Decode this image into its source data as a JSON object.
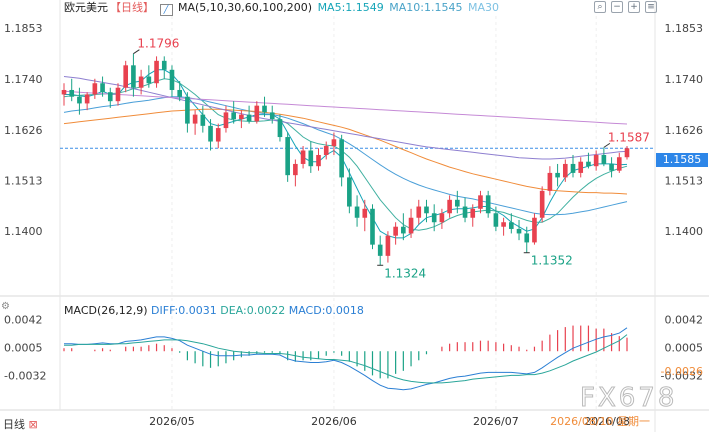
{
  "header": {
    "symbol": "欧元美元",
    "period": "【日线】",
    "ma_label": "MA(5,10,30,60,100,200)",
    "ma5": "MA5:1.1549",
    "ma10": "MA10:1.1545",
    "ma30": "MA30"
  },
  "macd_header": {
    "name": "MACD(26,12,9)",
    "diff": "DIFF:0.0031",
    "dea": "DEA:0.0022",
    "macd": "MACD:0.0018"
  },
  "footer": {
    "period_btn": "日线",
    "dates": [
      "2026/05",
      "2026/06",
      "2026/07",
      "2026/08"
    ],
    "crosshair_date": "2026/08/10 星期一"
  },
  "watermark": "FX678",
  "current_price": "1.1585",
  "icons": [
    "search-icon",
    "zoom-out-icon",
    "zoom-in-icon",
    "settings-icon"
  ],
  "colors": {
    "up": "#e8414f",
    "down": "#1aa286",
    "ma5": "#16a5b8",
    "ma10": "#4aa3c8",
    "ma30": "#7ec2e3",
    "ma60": "#c58ad6",
    "ma100": "#9b8fd6",
    "ma200": "#f08c3a",
    "diff": "#2b7fd4",
    "dea": "#2aa69a",
    "price_line": "#3a8ee6"
  },
  "chart_data": {
    "type": "candlestick",
    "price_axis": [
      "1.1853",
      "1.1740",
      "1.1626",
      "1.1513",
      "1.1400"
    ],
    "ylim": [
      1.128,
      1.188
    ],
    "annotations": [
      {
        "label": "1.1796",
        "value": 1.1796,
        "kind": "high"
      },
      {
        "label": "1.1324",
        "value": 1.1324,
        "kind": "low"
      },
      {
        "label": "1.1352",
        "value": 1.1352,
        "kind": "low"
      },
      {
        "label": "1.1587",
        "value": 1.1587,
        "kind": "high"
      }
    ],
    "candles": [
      [
        1.1705,
        1.173,
        1.168,
        1.1715
      ],
      [
        1.1715,
        1.174,
        1.169,
        1.17
      ],
      [
        1.17,
        1.172,
        1.166,
        1.1685
      ],
      [
        1.1685,
        1.171,
        1.167,
        1.1705
      ],
      [
        1.1705,
        1.174,
        1.1695,
        1.173
      ],
      [
        1.173,
        1.1745,
        1.17,
        1.171
      ],
      [
        1.171,
        1.172,
        1.1675,
        1.169
      ],
      [
        1.169,
        1.173,
        1.168,
        1.172
      ],
      [
        1.172,
        1.178,
        1.171,
        1.177
      ],
      [
        1.177,
        1.1796,
        1.17,
        1.172
      ],
      [
        1.172,
        1.176,
        1.1705,
        1.1745
      ],
      [
        1.1745,
        1.177,
        1.172,
        1.173
      ],
      [
        1.173,
        1.179,
        1.172,
        1.178
      ],
      [
        1.178,
        1.179,
        1.174,
        1.176
      ],
      [
        1.176,
        1.177,
        1.17,
        1.1715
      ],
      [
        1.1715,
        1.1735,
        1.169,
        1.17
      ],
      [
        1.17,
        1.171,
        1.162,
        1.164
      ],
      [
        1.164,
        1.167,
        1.1615,
        1.166
      ],
      [
        1.166,
        1.168,
        1.162,
        1.1635
      ],
      [
        1.1635,
        1.165,
        1.158,
        1.16
      ],
      [
        1.16,
        1.164,
        1.1585,
        1.163
      ],
      [
        1.163,
        1.168,
        1.162,
        1.1665
      ],
      [
        1.1665,
        1.169,
        1.164,
        1.165
      ],
      [
        1.165,
        1.167,
        1.163,
        1.166
      ],
      [
        1.166,
        1.168,
        1.164,
        1.1645
      ],
      [
        1.1645,
        1.169,
        1.164,
        1.168
      ],
      [
        1.168,
        1.17,
        1.1655,
        1.1665
      ],
      [
        1.1665,
        1.168,
        1.164,
        1.165
      ],
      [
        1.165,
        1.166,
        1.16,
        1.161
      ],
      [
        1.161,
        1.162,
        1.151,
        1.1525
      ],
      [
        1.1525,
        1.156,
        1.15,
        1.155
      ],
      [
        1.155,
        1.159,
        1.154,
        1.158
      ],
      [
        1.158,
        1.16,
        1.153,
        1.1545
      ],
      [
        1.1545,
        1.1585,
        1.1535,
        1.157
      ],
      [
        1.157,
        1.16,
        1.156,
        1.159
      ],
      [
        1.159,
        1.162,
        1.157,
        1.1605
      ],
      [
        1.1605,
        1.1615,
        1.15,
        1.152
      ],
      [
        1.152,
        1.154,
        1.144,
        1.1455
      ],
      [
        1.1455,
        1.148,
        1.141,
        1.143
      ],
      [
        1.143,
        1.147,
        1.14,
        1.145
      ],
      [
        1.145,
        1.146,
        1.136,
        1.137
      ],
      [
        1.137,
        1.139,
        1.1324,
        1.1345
      ],
      [
        1.1345,
        1.14,
        1.133,
        1.139
      ],
      [
        1.139,
        1.142,
        1.137,
        1.141
      ],
      [
        1.141,
        1.144,
        1.138,
        1.1395
      ],
      [
        1.1395,
        1.145,
        1.1385,
        1.143
      ],
      [
        1.143,
        1.147,
        1.1415,
        1.1455
      ],
      [
        1.1455,
        1.147,
        1.142,
        1.144
      ],
      [
        1.144,
        1.146,
        1.14,
        1.142
      ],
      [
        1.142,
        1.145,
        1.1405,
        1.144
      ],
      [
        1.144,
        1.148,
        1.143,
        1.147
      ],
      [
        1.147,
        1.149,
        1.144,
        1.1455
      ],
      [
        1.1455,
        1.1475,
        1.142,
        1.143
      ],
      [
        1.143,
        1.146,
        1.141,
        1.145
      ],
      [
        1.145,
        1.149,
        1.144,
        1.148
      ],
      [
        1.148,
        1.149,
        1.143,
        1.144
      ],
      [
        1.144,
        1.1455,
        1.14,
        1.141
      ],
      [
        1.141,
        1.143,
        1.139,
        1.142
      ],
      [
        1.142,
        1.144,
        1.1395,
        1.1405
      ],
      [
        1.1405,
        1.1425,
        1.138,
        1.1395
      ],
      [
        1.1395,
        1.141,
        1.1352,
        1.1375
      ],
      [
        1.1375,
        1.144,
        1.137,
        1.143
      ],
      [
        1.143,
        1.15,
        1.142,
        1.149
      ],
      [
        1.149,
        1.1545,
        1.148,
        1.153
      ],
      [
        1.153,
        1.155,
        1.15,
        1.152
      ],
      [
        1.152,
        1.156,
        1.151,
        1.155
      ],
      [
        1.155,
        1.157,
        1.152,
        1.153
      ],
      [
        1.153,
        1.1565,
        1.152,
        1.1555
      ],
      [
        1.1555,
        1.1575,
        1.154,
        1.1545
      ],
      [
        1.1545,
        1.158,
        1.1535,
        1.157
      ],
      [
        1.157,
        1.1587,
        1.1545,
        1.155
      ],
      [
        1.155,
        1.1565,
        1.152,
        1.1535
      ],
      [
        1.1535,
        1.1575,
        1.153,
        1.1565
      ],
      [
        1.1565,
        1.159,
        1.156,
        1.1585
      ]
    ],
    "ma_series": {
      "MA5": [
        1.1705,
        1.1705,
        1.1702,
        1.17,
        1.1705,
        1.1712,
        1.1705,
        1.1705,
        1.1725,
        1.1732,
        1.1735,
        1.175,
        1.176,
        1.176,
        1.175,
        1.173,
        1.17,
        1.168,
        1.166,
        1.164,
        1.1635,
        1.164,
        1.1645,
        1.165,
        1.1655,
        1.166,
        1.166,
        1.166,
        1.165,
        1.162,
        1.159,
        1.1565,
        1.1555,
        1.1555,
        1.157,
        1.158,
        1.1565,
        1.153,
        1.1495,
        1.146,
        1.143,
        1.14,
        1.139,
        1.1385,
        1.1385,
        1.1395,
        1.1415,
        1.143,
        1.1435,
        1.144,
        1.1448,
        1.145,
        1.145,
        1.1452,
        1.1455,
        1.1455,
        1.1445,
        1.1435,
        1.142,
        1.141,
        1.14,
        1.1405,
        1.143,
        1.1465,
        1.1495,
        1.152,
        1.1535,
        1.154,
        1.1545,
        1.155,
        1.155,
        1.155,
        1.1548,
        1.1549
      ],
      "MA10": [
        1.17,
        1.1702,
        1.1703,
        1.1704,
        1.1705,
        1.1706,
        1.1707,
        1.1708,
        1.1712,
        1.1718,
        1.1722,
        1.1728,
        1.1735,
        1.174,
        1.1738,
        1.173,
        1.1718,
        1.1705,
        1.169,
        1.1675,
        1.166,
        1.1652,
        1.1648,
        1.1646,
        1.1645,
        1.1645,
        1.1646,
        1.1648,
        1.1648,
        1.164,
        1.1625,
        1.161,
        1.16,
        1.1595,
        1.1592,
        1.159,
        1.158,
        1.1565,
        1.1545,
        1.152,
        1.1495,
        1.147,
        1.145,
        1.143,
        1.1415,
        1.1405,
        1.1402,
        1.1405,
        1.141,
        1.1418,
        1.1428,
        1.1435,
        1.144,
        1.1443,
        1.1445,
        1.1447,
        1.1445,
        1.1442,
        1.1436,
        1.143,
        1.1424,
        1.142,
        1.142,
        1.1428,
        1.144,
        1.1458,
        1.1476,
        1.1492,
        1.1506,
        1.1518,
        1.1527,
        1.1534,
        1.154,
        1.1545
      ],
      "MA30": [
        1.1665,
        1.1668,
        1.167,
        1.1672,
        1.1675,
        1.1678,
        1.168,
        1.1682,
        1.1685,
        1.1688,
        1.169,
        1.1692,
        1.1695,
        1.1698,
        1.17,
        1.17,
        1.1698,
        1.1695,
        1.1692,
        1.1688,
        1.1684,
        1.168,
        1.1676,
        1.1672,
        1.1668,
        1.1665,
        1.1662,
        1.166,
        1.1657,
        1.1652,
        1.1646,
        1.164,
        1.1633,
        1.1626,
        1.162,
        1.1614,
        1.1605,
        1.1595,
        1.1584,
        1.1572,
        1.156,
        1.1548,
        1.1537,
        1.1527,
        1.1518,
        1.151,
        1.1503,
        1.1497,
        1.1492,
        1.1487,
        1.1482,
        1.1478,
        1.1475,
        1.1472,
        1.1468,
        1.1464,
        1.146,
        1.1456,
        1.1452,
        1.1448,
        1.1444,
        1.144,
        1.1438,
        1.1437,
        1.1437,
        1.1438,
        1.144,
        1.1443,
        1.1446,
        1.145,
        1.1454,
        1.1458,
        1.1462,
        1.1466
      ],
      "MA60": [
        1.164,
        1.1642,
        1.1644,
        1.1646,
        1.1648,
        1.165,
        1.1652,
        1.1654,
        1.1656,
        1.1658,
        1.166,
        1.1662,
        1.1664,
        1.1666,
        1.1668,
        1.1669,
        1.167,
        1.1671,
        1.1672,
        1.1672,
        1.1672,
        1.1671,
        1.167,
        1.1669,
        1.1668,
        1.1667,
        1.1665,
        1.1663,
        1.1661,
        1.1658,
        1.1655,
        1.1652,
        1.1648,
        1.1644,
        1.164,
        1.1636,
        1.1632,
        1.1627,
        1.1621,
        1.1615,
        1.1609,
        1.1603,
        1.1596,
        1.1589,
        1.1582,
        1.1575,
        1.1568,
        1.1561,
        1.1555,
        1.1549,
        1.1543,
        1.1538,
        1.1533,
        1.1528,
        1.1524,
        1.152,
        1.1516,
        1.1512,
        1.1508,
        1.1504,
        1.15,
        1.1497,
        1.1494,
        1.1492,
        1.149,
        1.1489,
        1.1488,
        1.1487,
        1.1486,
        1.1486,
        1.1485,
        1.1485,
        1.1484,
        1.1483
      ],
      "MA100": [
        1.1745,
        1.1743,
        1.1741,
        1.1738,
        1.1735,
        1.1732,
        1.1729,
        1.1726,
        1.1722,
        1.1718,
        1.1714,
        1.171,
        1.1706,
        1.1702,
        1.1698,
        1.1694,
        1.169,
        1.1686,
        1.1682,
        1.1678,
        1.1674,
        1.167,
        1.1666,
        1.1662,
        1.1658,
        1.1654,
        1.1651,
        1.1648,
        1.1645,
        1.1642,
        1.1639,
        1.1636,
        1.1633,
        1.163,
        1.1627,
        1.1624,
        1.1621,
        1.1618,
        1.1615,
        1.1612,
        1.1609,
        1.1606,
        1.1603,
        1.16,
        1.1597,
        1.1594,
        1.1591,
        1.1588,
        1.1586,
        1.1584,
        1.1582,
        1.158,
        1.1578,
        1.1576,
        1.1574,
        1.1572,
        1.157,
        1.1568,
        1.1566,
        1.1564,
        1.1563,
        1.1562,
        1.1561,
        1.1561,
        1.1562,
        1.1563,
        1.1565,
        1.1567,
        1.1569,
        1.1571,
        1.1573,
        1.1575,
        1.1577,
        1.1578
      ],
      "MA200": [
        1.1712,
        1.1711,
        1.171,
        1.1709,
        1.1708,
        1.1707,
        1.1706,
        1.1705,
        1.1704,
        1.1703,
        1.1702,
        1.1701,
        1.17,
        1.1699,
        1.1698,
        1.1697,
        1.1696,
        1.1695,
        1.1694,
        1.1693,
        1.1692,
        1.1691,
        1.169,
        1.1689,
        1.1688,
        1.1687,
        1.1686,
        1.1685,
        1.1684,
        1.1683,
        1.1682,
        1.1681,
        1.168,
        1.1679,
        1.1678,
        1.1677,
        1.1676,
        1.1675,
        1.1674,
        1.1673,
        1.1672,
        1.1671,
        1.167,
        1.1669,
        1.1668,
        1.1667,
        1.1666,
        1.1665,
        1.1664,
        1.1663,
        1.1662,
        1.1661,
        1.166,
        1.1659,
        1.1658,
        1.1657,
        1.1656,
        1.1655,
        1.1654,
        1.1653,
        1.1652,
        1.1651,
        1.165,
        1.1649,
        1.1648,
        1.1647,
        1.1646,
        1.1645,
        1.1644,
        1.1643,
        1.1642,
        1.1641,
        1.164,
        1.1639
      ]
    },
    "macd_axis": [
      "0.0042",
      "0.0005",
      "-0.0032",
      "-0.0026"
    ],
    "macd_ylim": [
      -0.0062,
      0.0052
    ],
    "diff": [
      0.001,
      0.001,
      0.0009,
      0.0009,
      0.001,
      0.0011,
      0.001,
      0.001,
      0.0013,
      0.0014,
      0.0015,
      0.0017,
      0.0019,
      0.0019,
      0.0017,
      0.0014,
      0.0008,
      0.0004,
      0.0,
      -0.0004,
      -0.0006,
      -0.0006,
      -0.0006,
      -0.0005,
      -0.0005,
      -0.0004,
      -0.0004,
      -0.0004,
      -0.0005,
      -0.001,
      -0.0013,
      -0.0014,
      -0.0015,
      -0.0015,
      -0.0014,
      -0.0012,
      -0.0015,
      -0.002,
      -0.0026,
      -0.0032,
      -0.0039,
      -0.0045,
      -0.0049,
      -0.005,
      -0.0051,
      -0.005,
      -0.0047,
      -0.0044,
      -0.0042,
      -0.0039,
      -0.0036,
      -0.0034,
      -0.0033,
      -0.0031,
      -0.0029,
      -0.0028,
      -0.0028,
      -0.0028,
      -0.0028,
      -0.0029,
      -0.003,
      -0.0028,
      -0.0022,
      -0.0015,
      -0.0008,
      -0.0002,
      0.0004,
      0.0008,
      0.0012,
      0.0016,
      0.0019,
      0.0021,
      0.0024,
      0.0031
    ],
    "dea": [
      0.0008,
      0.0008,
      0.0009,
      0.0009,
      0.0009,
      0.0009,
      0.0009,
      0.001,
      0.001,
      0.0011,
      0.0012,
      0.0013,
      0.0014,
      0.0015,
      0.0015,
      0.0015,
      0.0014,
      0.0012,
      0.001,
      0.0007,
      0.0004,
      0.0002,
      0.0,
      -0.0001,
      -0.0002,
      -0.0002,
      -0.0003,
      -0.0003,
      -0.0003,
      -0.0004,
      -0.0006,
      -0.0008,
      -0.0009,
      -0.001,
      -0.0011,
      -0.0011,
      -0.0012,
      -0.0013,
      -0.0016,
      -0.0019,
      -0.0023,
      -0.0027,
      -0.0031,
      -0.0035,
      -0.0038,
      -0.004,
      -0.0041,
      -0.0042,
      -0.0042,
      -0.0042,
      -0.0041,
      -0.004,
      -0.0039,
      -0.0037,
      -0.0036,
      -0.0035,
      -0.0034,
      -0.0033,
      -0.0032,
      -0.0032,
      -0.0031,
      -0.0031,
      -0.0029,
      -0.0026,
      -0.0022,
      -0.0018,
      -0.0013,
      -0.0009,
      -0.0005,
      -0.0001,
      0.0004,
      0.0009,
      0.0014,
      0.0022
    ],
    "hist": [
      0.0004,
      0.0004,
      0.0,
      0.0,
      0.0002,
      0.0004,
      0.0002,
      0.0,
      0.0006,
      0.0006,
      0.0006,
      0.0008,
      0.001,
      0.0008,
      0.0004,
      -0.0002,
      -0.0012,
      -0.0016,
      -0.002,
      -0.0022,
      -0.002,
      -0.0016,
      -0.0012,
      -0.0008,
      -0.0006,
      -0.0004,
      -0.0002,
      -0.0002,
      -0.0004,
      -0.0012,
      -0.0014,
      -0.0012,
      -0.0012,
      -0.001,
      -0.0006,
      -0.0002,
      -0.0006,
      -0.0014,
      -0.002,
      -0.0026,
      -0.0032,
      -0.0036,
      -0.0036,
      -0.003,
      -0.0026,
      -0.002,
      -0.0012,
      -0.0004,
      0.0,
      0.0006,
      0.001,
      0.0012,
      0.0012,
      0.0012,
      0.0014,
      0.0014,
      0.0012,
      0.001,
      0.0008,
      0.0006,
      0.0002,
      0.0006,
      0.0014,
      0.0022,
      0.0028,
      0.0032,
      0.0034,
      0.0034,
      0.0034,
      0.003,
      0.003,
      0.0024,
      0.002,
      0.0018
    ]
  }
}
